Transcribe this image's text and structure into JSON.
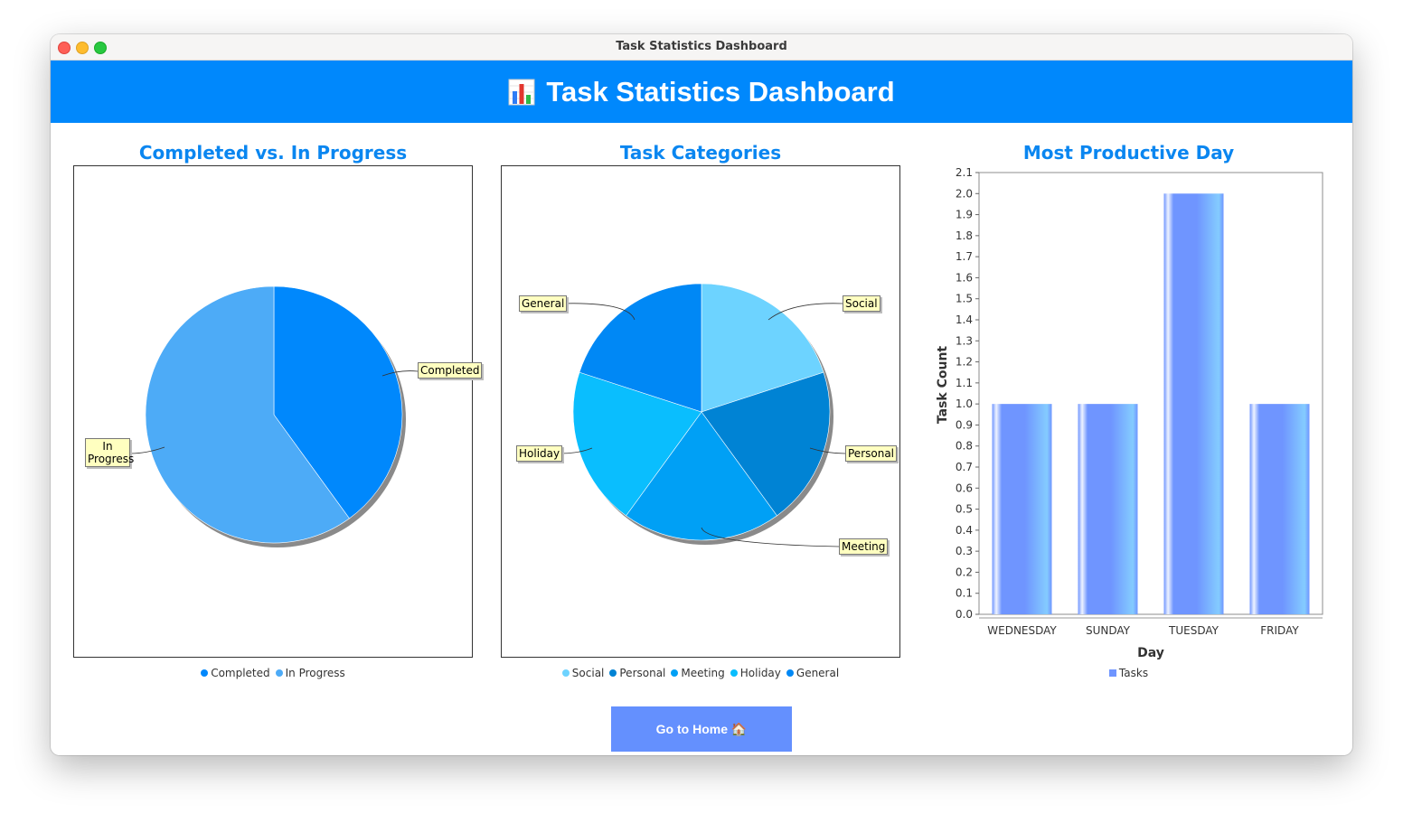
{
  "window": {
    "title": "Task Statistics Dashboard"
  },
  "header": {
    "icon": "bar-chart-icon",
    "title": "Task Statistics Dashboard",
    "color": "#0088fc"
  },
  "charts": {
    "completion": {
      "title": "Completed vs. In Progress",
      "legend": [
        "Completed",
        "In Progress"
      ],
      "labels": {
        "completed": "Completed",
        "in_progress": "In Progress"
      }
    },
    "categories": {
      "title": "Task Categories",
      "legend": [
        "Social",
        "Personal",
        "Meeting",
        "Holiday",
        "General"
      ],
      "labels": {
        "social": "Social",
        "personal": "Personal",
        "meeting": "Meeting",
        "holiday": "Holiday",
        "general": "General"
      }
    },
    "productive": {
      "title": "Most Productive Day",
      "legend": [
        "Tasks"
      ]
    }
  },
  "footer": {
    "home_button": "Go to Home 🏠"
  },
  "chart_data": [
    {
      "type": "pie",
      "title": "Completed vs. In Progress",
      "categories": [
        "Completed",
        "In Progress"
      ],
      "values": [
        2,
        3
      ],
      "colors": [
        "#0088fc",
        "#4dabf7"
      ],
      "legend": "bottom"
    },
    {
      "type": "pie",
      "title": "Task Categories",
      "categories": [
        "Social",
        "Personal",
        "Meeting",
        "Holiday",
        "General"
      ],
      "values": [
        1,
        1,
        1,
        1,
        1
      ],
      "colors": [
        "#6dd3ff",
        "#0083d4",
        "#00a0f5",
        "#0abefe",
        "#0088f5"
      ],
      "legend": "bottom"
    },
    {
      "type": "bar",
      "title": "Most Productive Day",
      "categories": [
        "WEDNESDAY",
        "SUNDAY",
        "TUESDAY",
        "FRIDAY"
      ],
      "series": [
        {
          "name": "Tasks",
          "values": [
            1,
            1,
            2,
            1
          ]
        }
      ],
      "xlabel": "Day",
      "ylabel": "Task Count",
      "ylim": [
        0,
        2.1
      ],
      "yticks": [
        "0.0",
        "0.1",
        "0.2",
        "0.3",
        "0.4",
        "0.5",
        "0.6",
        "0.7",
        "0.8",
        "0.9",
        "1.0",
        "1.1",
        "1.2",
        "1.3",
        "1.4",
        "1.5",
        "1.6",
        "1.7",
        "1.8",
        "1.9",
        "2.0",
        "2.1"
      ],
      "color": "#6f95ff",
      "legend": "bottom"
    }
  ]
}
